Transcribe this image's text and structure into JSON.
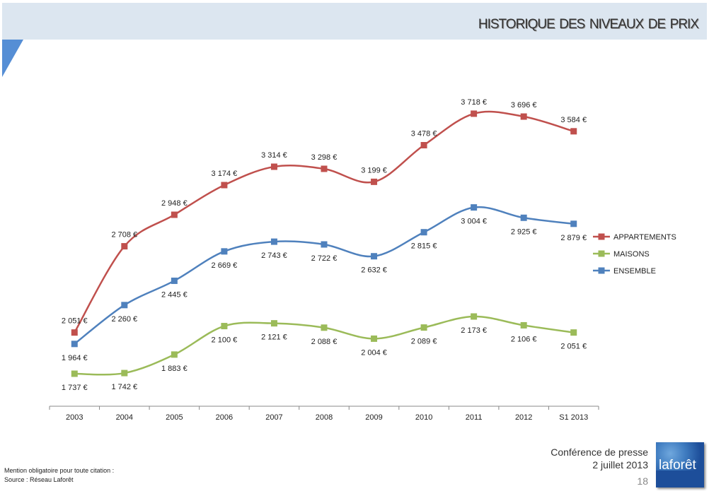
{
  "header": {
    "title": "Historique des niveaux de prix"
  },
  "footer": {
    "mention": "Mention obligatoire pour toute citation :",
    "source": "Source : Réseau Laforêt",
    "event": "Conférence de presse",
    "date": "2 juillet 2013",
    "page": "18",
    "logo": "laforêt"
  },
  "chart_data": {
    "type": "line",
    "categories": [
      "2003",
      "2004",
      "2005",
      "2006",
      "2007",
      "2008",
      "2009",
      "2010",
      "2011",
      "2012",
      "S1 2013"
    ],
    "ylim": [
      1489,
      3800
    ],
    "grid": false,
    "legend_position": "right",
    "series": [
      {
        "name": "APPARTEMENTS",
        "color": "#c0504d",
        "values": [
          2051,
          2708,
          2948,
          3174,
          3314,
          3298,
          3199,
          3478,
          3718,
          3696,
          3584
        ],
        "labels": [
          "2 051 €",
          "2 708 €",
          "2 948 €",
          "3 174 €",
          "3 314 €",
          "3 298 €",
          "3 199 €",
          "3 478 €",
          "3 718 €",
          "3 696 €",
          "3 584 €"
        ]
      },
      {
        "name": "MAISONS",
        "color": "#9bbb59",
        "values": [
          1737,
          1742,
          1883,
          2100,
          2121,
          2088,
          2004,
          2089,
          2173,
          2106,
          2051
        ],
        "labels": [
          "1 737 €",
          "1 742 €",
          "1 883 €",
          "2 100 €",
          "2 121 €",
          "2 088 €",
          "2 004 €",
          "2 089 €",
          "2 173 €",
          "2 106 €",
          "2 051 €"
        ]
      },
      {
        "name": "ENSEMBLE",
        "color": "#4f81bd",
        "values": [
          1964,
          2260,
          2445,
          2669,
          2743,
          2722,
          2632,
          2815,
          3004,
          2925,
          2879
        ],
        "labels": [
          "1 964 €",
          "2 260 €",
          "2 445 €",
          "2 669 €",
          "2 743 €",
          "2 722 €",
          "2 632 €",
          "2 815 €",
          "3 004 €",
          "2 925 €",
          "2 879 €"
        ]
      }
    ]
  }
}
